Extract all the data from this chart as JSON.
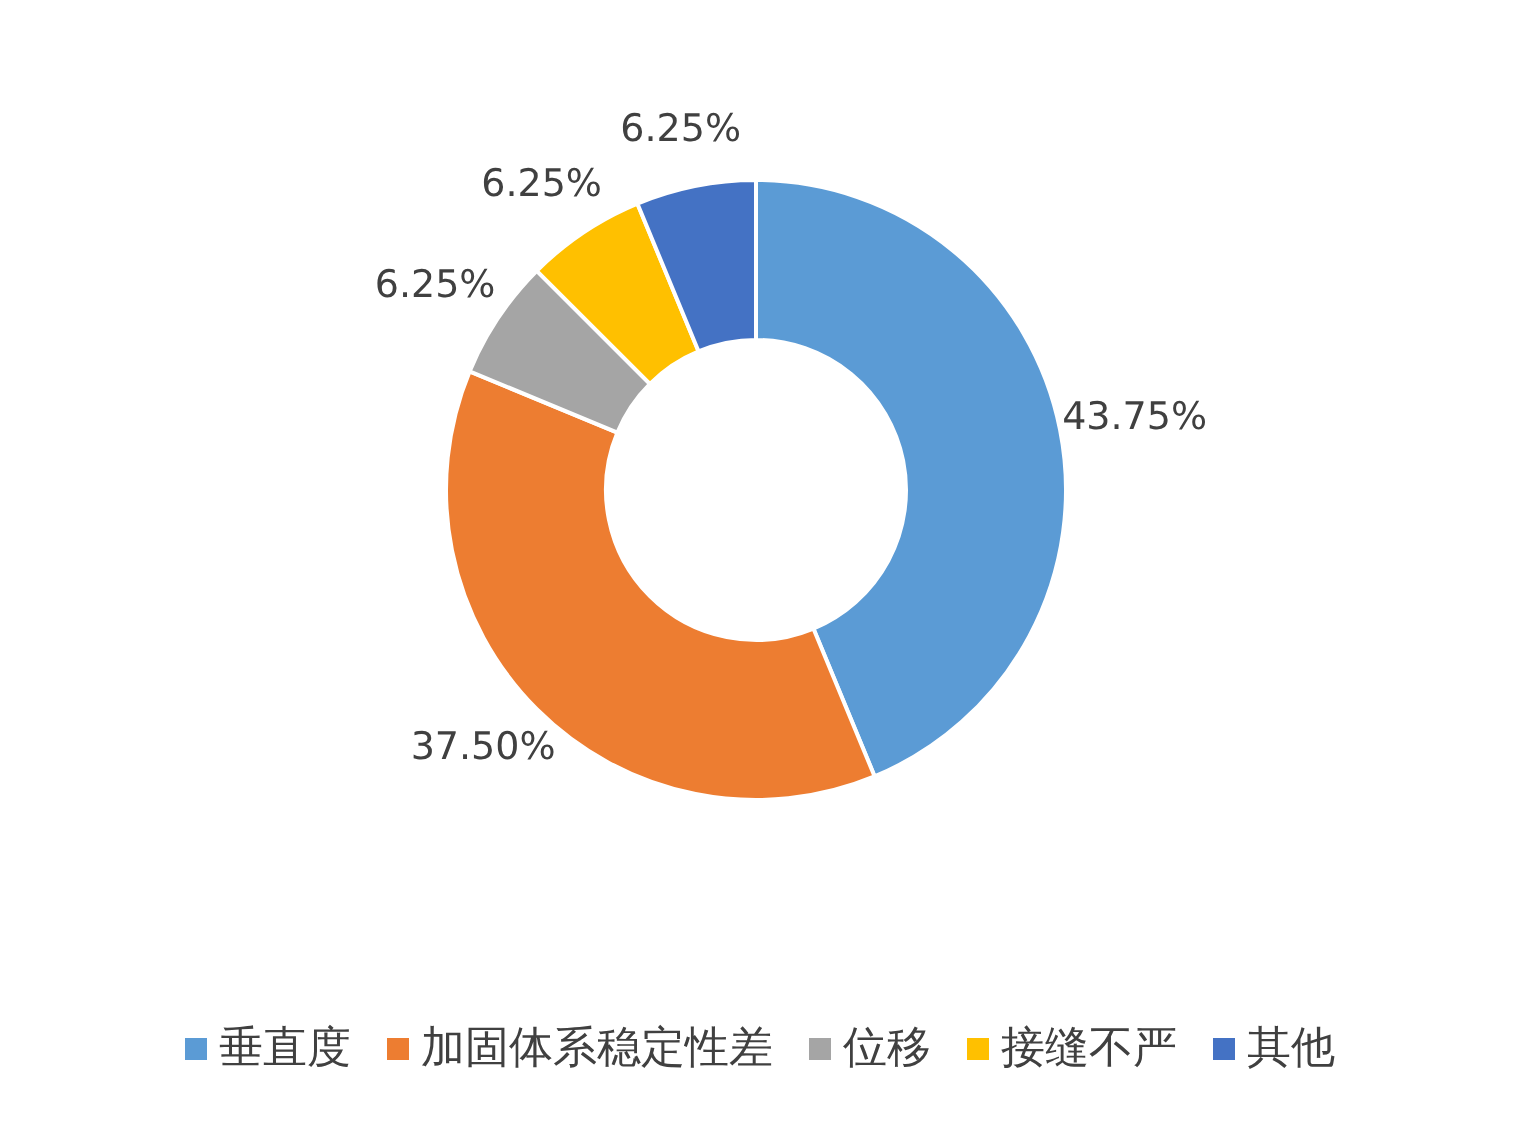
{
  "chart_data": {
    "type": "donut",
    "categories": [
      "垂直度",
      "加固体系稳定性差",
      "位移",
      "接缝不严",
      "其他"
    ],
    "values": [
      43.75,
      37.5,
      6.25,
      6.25,
      6.25
    ],
    "colors": [
      "#5b9bd5",
      "#ed7d31",
      "#a5a5a5",
      "#ffc000",
      "#4472c4"
    ],
    "value_labels": [
      "43.75%",
      "37.50%",
      "6.25%",
      "6.25%",
      "6.25%"
    ],
    "legend": "bottom"
  }
}
